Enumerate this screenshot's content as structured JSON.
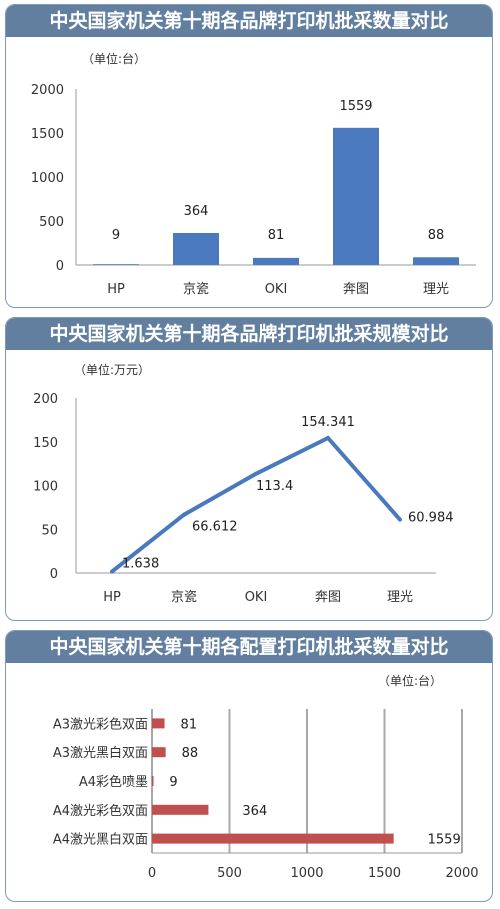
{
  "chart_data": [
    {
      "type": "bar",
      "title": "中央国家机关第十期各品牌打印机批采数量对比",
      "unit": "（单位:台）",
      "categories": [
        "HP",
        "京瓷",
        "OKI",
        "奔图",
        "理光"
      ],
      "values": [
        9,
        364,
        81,
        1559,
        88
      ],
      "value_labels": [
        "9",
        "364",
        "81",
        "1559",
        "88"
      ],
      "y_ticks": [
        "0",
        "500",
        "1000",
        "1500",
        "2000"
      ],
      "ylim": [
        0,
        2000
      ],
      "grid": false,
      "color": "#4a79bd"
    },
    {
      "type": "line",
      "title": "中央国家机关第十期各品牌打印机批采规模对比",
      "unit": "（单位:万元）",
      "categories": [
        "HP",
        "京瓷",
        "OKI",
        "奔图",
        "理光"
      ],
      "values": [
        1.638,
        66.612,
        113.4,
        154.341,
        60.984
      ],
      "value_labels": [
        "1.638",
        "66.612",
        "113.4",
        "154.341",
        "60.984"
      ],
      "y_ticks": [
        "0",
        "50",
        "100",
        "150",
        "200"
      ],
      "ylim": [
        0,
        200
      ],
      "grid": false,
      "color": "#4a79bd"
    },
    {
      "type": "bar",
      "orientation": "horizontal",
      "title": "中央国家机关第十期各配置打印机批采数量对比",
      "unit": "（单位:台）",
      "categories": [
        "A3激光彩色双面",
        "A3激光黑白双面",
        "A4彩色喷墨",
        "A4激光彩色双面",
        "A4激光黑白双面"
      ],
      "values": [
        81,
        88,
        9,
        364,
        1559
      ],
      "value_labels": [
        "81",
        "88",
        "9",
        "364",
        "1559"
      ],
      "x_ticks": [
        "0",
        "500",
        "1000",
        "1500",
        "2000"
      ],
      "xlim": [
        0,
        2000
      ],
      "grid": true,
      "color": "#c0504d"
    }
  ]
}
